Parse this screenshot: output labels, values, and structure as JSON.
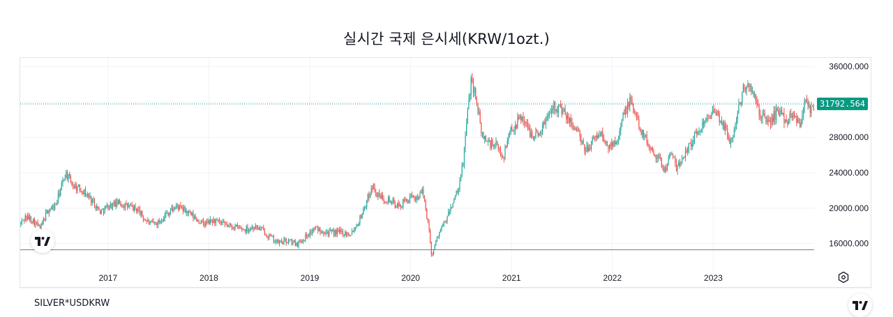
{
  "title": "실시간 국제 은시세(KRW/1ozt.)",
  "symbol": "SILVER*USDKRW",
  "colors": {
    "up": "#26a69a",
    "down": "#ef5350",
    "badge": "#089981",
    "grid": "#f0f3fa",
    "refline": "#787b86"
  },
  "chart_data": {
    "type": "candlestick",
    "title": "실시간 국제 은시세(KRW/1ozt.)",
    "series_name": "SILVER*USDKRW",
    "y_ticks": [
      "36000.000",
      "28000.000",
      "24000.000",
      "20000.000",
      "16000.000"
    ],
    "y_tick_values": [
      36000,
      28000,
      24000,
      20000,
      16000
    ],
    "x_ticks": [
      "2017",
      "2018",
      "2019",
      "2020",
      "2021",
      "2022",
      "2023"
    ],
    "x_tick_values": [
      2017,
      2018,
      2019,
      2020,
      2021,
      2022,
      2023
    ],
    "ylim": [
      12500,
      37000
    ],
    "xlim": [
      2016.13,
      2024.0
    ],
    "last_price_label": "31792.564",
    "last_price": 31792.564,
    "price_line_low": 15300,
    "grid": true,
    "series_path": [
      [
        2016.13,
        18200
      ],
      [
        2016.18,
        19000
      ],
      [
        2016.25,
        18700
      ],
      [
        2016.33,
        17700
      ],
      [
        2016.4,
        19700
      ],
      [
        2016.48,
        20300
      ],
      [
        2016.52,
        21800
      ],
      [
        2016.58,
        24000
      ],
      [
        2016.65,
        22600
      ],
      [
        2016.75,
        22000
      ],
      [
        2016.85,
        20800
      ],
      [
        2016.92,
        19600
      ],
      [
        2017.0,
        20200
      ],
      [
        2017.1,
        20600
      ],
      [
        2017.2,
        20200
      ],
      [
        2017.3,
        19800
      ],
      [
        2017.35,
        18900
      ],
      [
        2017.42,
        18200
      ],
      [
        2017.5,
        18400
      ],
      [
        2017.58,
        19400
      ],
      [
        2017.68,
        20200
      ],
      [
        2017.78,
        19600
      ],
      [
        2017.88,
        18700
      ],
      [
        2017.95,
        18200
      ],
      [
        2018.05,
        18600
      ],
      [
        2018.15,
        18100
      ],
      [
        2018.25,
        17900
      ],
      [
        2018.35,
        17600
      ],
      [
        2018.45,
        17900
      ],
      [
        2018.52,
        17600
      ],
      [
        2018.6,
        16800
      ],
      [
        2018.68,
        16100
      ],
      [
        2018.78,
        16300
      ],
      [
        2018.88,
        16000
      ],
      [
        2018.95,
        16700
      ],
      [
        2019.05,
        17700
      ],
      [
        2019.12,
        17500
      ],
      [
        2019.2,
        17200
      ],
      [
        2019.3,
        17300
      ],
      [
        2019.4,
        17100
      ],
      [
        2019.48,
        18400
      ],
      [
        2019.55,
        20300
      ],
      [
        2019.62,
        22600
      ],
      [
        2019.68,
        21300
      ],
      [
        2019.78,
        21000
      ],
      [
        2019.88,
        20100
      ],
      [
        2019.95,
        20900
      ],
      [
        2020.05,
        21200
      ],
      [
        2020.12,
        21800
      ],
      [
        2020.17,
        18600
      ],
      [
        2020.21,
        14600
      ],
      [
        2020.27,
        17000
      ],
      [
        2020.35,
        18600
      ],
      [
        2020.42,
        20700
      ],
      [
        2020.48,
        22200
      ],
      [
        2020.52,
        25300
      ],
      [
        2020.56,
        30200
      ],
      [
        2020.6,
        34800
      ],
      [
        2020.66,
        31800
      ],
      [
        2020.7,
        28400
      ],
      [
        2020.78,
        27300
      ],
      [
        2020.85,
        27000
      ],
      [
        2020.92,
        25800
      ],
      [
        2020.98,
        28700
      ],
      [
        2021.05,
        29600
      ],
      [
        2021.1,
        30500
      ],
      [
        2021.18,
        28600
      ],
      [
        2021.26,
        28200
      ],
      [
        2021.33,
        29700
      ],
      [
        2021.4,
        31700
      ],
      [
        2021.48,
        31300
      ],
      [
        2021.58,
        29700
      ],
      [
        2021.66,
        28700
      ],
      [
        2021.72,
        26400
      ],
      [
        2021.8,
        27500
      ],
      [
        2021.88,
        28600
      ],
      [
        2021.95,
        26800
      ],
      [
        2022.05,
        28000
      ],
      [
        2022.12,
        30800
      ],
      [
        2022.18,
        32200
      ],
      [
        2022.26,
        29500
      ],
      [
        2022.35,
        27300
      ],
      [
        2022.45,
        25800
      ],
      [
        2022.52,
        24300
      ],
      [
        2022.58,
        26400
      ],
      [
        2022.64,
        24300
      ],
      [
        2022.72,
        26400
      ],
      [
        2022.8,
        27800
      ],
      [
        2022.88,
        29200
      ],
      [
        2022.95,
        30800
      ],
      [
        2023.05,
        30400
      ],
      [
        2023.12,
        28900
      ],
      [
        2023.18,
        27300
      ],
      [
        2023.24,
        30800
      ],
      [
        2023.3,
        33400
      ],
      [
        2023.35,
        34100
      ],
      [
        2023.4,
        32600
      ],
      [
        2023.48,
        30300
      ],
      [
        2023.56,
        29700
      ],
      [
        2023.64,
        31100
      ],
      [
        2023.72,
        29900
      ],
      [
        2023.8,
        30800
      ],
      [
        2023.86,
        29300
      ],
      [
        2023.92,
        33000
      ],
      [
        2023.96,
        30600
      ],
      [
        2024.0,
        31800
      ]
    ]
  }
}
